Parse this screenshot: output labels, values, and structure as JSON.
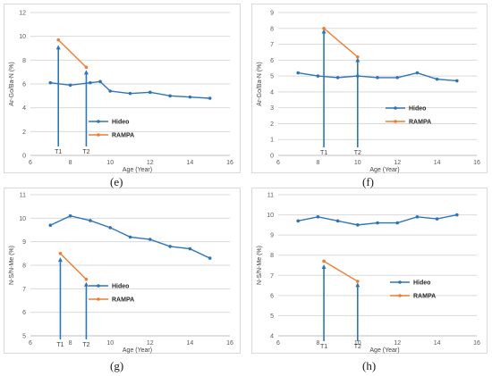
{
  "colors": {
    "hideo": "#2e75b6",
    "rampa": "#ed7d31",
    "grid": "#d9d9d9"
  },
  "chart_data": [
    {
      "panel": "(e)",
      "type": "line",
      "ylabel": "Ar-Go/Ba-N (%)",
      "xlabel": "Age (Year)",
      "xlim": [
        6,
        16
      ],
      "xticks": [
        6,
        8,
        10,
        12,
        14,
        16
      ],
      "ylim": [
        0,
        12
      ],
      "yticks": [
        0,
        2,
        4,
        6,
        8,
        10,
        12
      ],
      "series": [
        {
          "name": "Hideo",
          "x": [
            7,
            8,
            9,
            9.5,
            10,
            11,
            12,
            13,
            14,
            15
          ],
          "y": [
            6.1,
            5.9,
            6.1,
            6.2,
            5.4,
            5.2,
            5.3,
            5.0,
            4.9,
            4.8
          ]
        },
        {
          "name": "RAMPA",
          "x": [
            7.4,
            8.8
          ],
          "y": [
            9.7,
            7.4
          ]
        }
      ],
      "markers": [
        {
          "label": "T1",
          "x": 7.4,
          "y": 9.2
        },
        {
          "label": "T2",
          "x": 8.8,
          "y": 7.1
        }
      ],
      "grid": "horizontal",
      "legend": "lower-middle"
    },
    {
      "panel": "(f)",
      "type": "line",
      "ylabel": "Ar-Go/Ba-N (%)",
      "xlabel": "Age (Year)",
      "xlim": [
        6,
        16
      ],
      "xticks": [
        6,
        8,
        10,
        12,
        14,
        16
      ],
      "ylim": [
        0,
        9
      ],
      "yticks": [
        0,
        1,
        2,
        3,
        4,
        5,
        6,
        7,
        8,
        9
      ],
      "series": [
        {
          "name": "Hideo",
          "x": [
            7,
            8,
            9,
            10,
            11,
            12,
            13,
            14,
            15
          ],
          "y": [
            5.2,
            5.0,
            4.9,
            5.0,
            4.9,
            4.9,
            5.2,
            4.8,
            4.7
          ]
        },
        {
          "name": "RAMPA",
          "x": [
            8.3,
            10
          ],
          "y": [
            8.0,
            6.2
          ]
        }
      ],
      "markers": [
        {
          "label": "T1",
          "x": 8.3,
          "y": 7.9
        },
        {
          "label": "T2",
          "x": 10,
          "y": 6.1
        }
      ],
      "grid": "horizontal",
      "legend": "middle-right"
    },
    {
      "panel": "(g)",
      "type": "line",
      "ylabel": "N-S/N-Me (%)",
      "xlabel": "Age (Year)",
      "xlim": [
        6,
        16
      ],
      "xticks": [
        6,
        8,
        10,
        12,
        14,
        16
      ],
      "ylim": [
        5,
        11
      ],
      "yticks": [
        5,
        6,
        7,
        8,
        9,
        10,
        11
      ],
      "series": [
        {
          "name": "Hideo",
          "x": [
            7,
            8,
            9,
            10,
            11,
            12,
            13,
            14,
            15
          ],
          "y": [
            9.7,
            10.1,
            9.9,
            9.6,
            9.2,
            9.1,
            8.8,
            8.7,
            8.3
          ]
        },
        {
          "name": "RAMPA",
          "x": [
            7.5,
            8.8
          ],
          "y": [
            8.5,
            7.4
          ]
        }
      ],
      "markers": [
        {
          "label": "T1",
          "x": 7.5,
          "y": 8.3
        },
        {
          "label": "T2",
          "x": 8.8,
          "y": 7.25
        }
      ],
      "grid": "horizontal",
      "legend": "lower-middle"
    },
    {
      "panel": "(h)",
      "type": "line",
      "ylabel": "N-S/N-Me (%)",
      "xlabel": "Age (Year)",
      "xlim": [
        6,
        16
      ],
      "xticks": [
        6,
        8,
        10,
        12,
        14,
        16
      ],
      "ylim": [
        4,
        11
      ],
      "yticks": [
        4,
        5,
        6,
        7,
        8,
        9,
        10,
        11
      ],
      "series": [
        {
          "name": "Hideo",
          "x": [
            7,
            8,
            9,
            10,
            11,
            12,
            13,
            14,
            15
          ],
          "y": [
            9.7,
            9.9,
            9.7,
            9.5,
            9.6,
            9.6,
            9.9,
            9.8,
            10.0
          ]
        },
        {
          "name": "RAMPA",
          "x": [
            8.3,
            10
          ],
          "y": [
            7.7,
            6.7
          ]
        }
      ],
      "markers": [
        {
          "label": "T1",
          "x": 8.3,
          "y": 7.5
        },
        {
          "label": "T2",
          "x": 10,
          "y": 6.6
        }
      ],
      "grid": "horizontal",
      "legend": "lower-right"
    }
  ]
}
